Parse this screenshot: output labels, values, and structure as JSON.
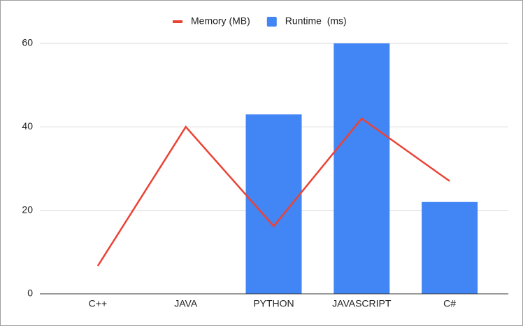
{
  "chart_data": {
    "type": "combo",
    "categories": [
      "C++",
      "JAVA",
      "PYTHON",
      "JAVASCRIPT",
      "C#"
    ],
    "series": [
      {
        "name": "Memory (MB)",
        "type": "line",
        "color": "#ea4335",
        "values": [
          6.7,
          40,
          16.2,
          42,
          27
        ]
      },
      {
        "name": "Runtime  (ms)",
        "type": "bar",
        "color": "#4285f4",
        "values": [
          0,
          0,
          43,
          60,
          22
        ]
      }
    ],
    "ylim": [
      0,
      60
    ],
    "yticks": [
      0,
      20,
      40,
      60
    ],
    "grid": true,
    "legend": "top"
  }
}
